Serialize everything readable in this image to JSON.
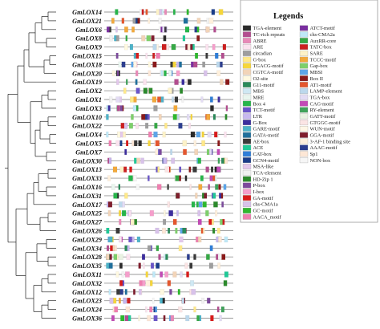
{
  "genes": [
    "GmLOX14",
    "GmLOX21",
    "GmLOX6",
    "GmLOX8",
    "GmLOX9",
    "GmLOX15",
    "GmLOX18",
    "GmLOX20",
    "GmLOX19",
    "GmLOX2",
    "GmLOX1",
    "GmLOX3",
    "GmLOX10",
    "GmLOX22",
    "GmLOX4",
    "GmLOX5",
    "GmLOX7",
    "GmLOX30",
    "GmLOX13",
    "GmLOX33",
    "GmLOX16",
    "GmLOX31",
    "GmLOX17",
    "GmLOX25",
    "GmLOX27",
    "GmLOX26",
    "GmLOX29",
    "GmLOX34",
    "GmLOX28",
    "GmLOX35",
    "GmLOX11",
    "GmLOX32",
    "GmLOX12",
    "GmLOX23",
    "GmLOX24",
    "GmLOX36"
  ],
  "legend": {
    "title": "Legends",
    "items": [
      {
        "label": "TGA-element",
        "color": "#2a2a2a"
      },
      {
        "label": "TC-rich repeats",
        "color": "#b34d8f"
      },
      {
        "label": "ABRE",
        "color": "#e889b8"
      },
      {
        "label": "ARE",
        "color": "#fbe3ef"
      },
      {
        "label": "circadian",
        "color": "#9e9e9e"
      },
      {
        "label": "G-box",
        "color": "#ffe98a"
      },
      {
        "label": "TGACG-motif",
        "color": "#f6d63a"
      },
      {
        "label": "CGTCA-motif",
        "color": "#f2d4b8"
      },
      {
        "label": "O2-site",
        "color": "#fff9e0"
      },
      {
        "label": "G11-motif",
        "color": "#2b8a5a"
      },
      {
        "label": "MBS",
        "color": "#cfe8f3"
      },
      {
        "label": "MRE",
        "color": "#e9f6ef"
      },
      {
        "label": "Box 4",
        "color": "#27b54a"
      },
      {
        "label": "TCT-motif",
        "color": "#6a55c9"
      },
      {
        "label": "LTR",
        "color": "#c7b8ef"
      },
      {
        "label": "G-Box",
        "color": "#3d2e9e"
      },
      {
        "label": "GARE-motif",
        "color": "#4db3c9"
      },
      {
        "label": "GATA-motif",
        "color": "#1f6f9c"
      },
      {
        "label": "AE-box",
        "color": "#3a3a3a"
      },
      {
        "label": "ACE",
        "color": "#20c997"
      },
      {
        "label": "CAT-box",
        "color": "#2f7ed8"
      },
      {
        "label": "GCN4-motif",
        "color": "#1a3d8a"
      },
      {
        "label": "MSA-like",
        "color": "#e3c8ec"
      },
      {
        "label": "TCA-element",
        "color": "#f1f1f1"
      },
      {
        "label": "HD-Zip 1",
        "color": "#2c8a2c"
      },
      {
        "label": "P-box",
        "color": "#7c4a9c"
      },
      {
        "label": "I-box",
        "color": "#f59ecb"
      },
      {
        "label": "GA-motif",
        "color": "#d91a1a"
      },
      {
        "label": "chs-CMA1a",
        "color": "#d8c2ea"
      },
      {
        "label": "GC-motif",
        "color": "#2eb82e"
      },
      {
        "label": "AACA_motif",
        "color": "#ef7fb0"
      },
      {
        "label": "ATCT-motif",
        "color": "#7a2ea0"
      },
      {
        "label": "chs-CMA2a",
        "color": "#bfe8f7"
      },
      {
        "label": "AuxRR-core",
        "color": "#35a845"
      },
      {
        "label": "TATC-box",
        "color": "#cc1f1f"
      },
      {
        "label": "SARE",
        "color": "#fdf2c8"
      },
      {
        "label": "TCCC-motif",
        "color": "#f2a93b"
      },
      {
        "label": "Gap-box",
        "color": "#7dcf6a"
      },
      {
        "label": "MBSI",
        "color": "#5da5e8"
      },
      {
        "label": "Box II",
        "color": "#8a1a1a"
      },
      {
        "label": "AT1-motif",
        "color": "#e4572e"
      },
      {
        "label": "LAMP-element",
        "color": "#bcd8ec"
      },
      {
        "label": "TGA-box",
        "color": "#e3dcf4"
      },
      {
        "label": "CAG-motif",
        "color": "#c24bb6"
      },
      {
        "label": "RY-element",
        "color": "#3fa35a"
      },
      {
        "label": "GATT-motif",
        "color": "#e9f2e2"
      },
      {
        "label": "GTGGC-motif",
        "color": "#fbe4e4"
      },
      {
        "label": "WUN-motif",
        "color": "#fff6e6"
      },
      {
        "label": "GGA-motif",
        "color": "#7f1d2d"
      },
      {
        "label": "3-AF-1 binding site",
        "color": "#fff0dc"
      },
      {
        "label": "AAAC-motif",
        "color": "#2c3e8f"
      },
      {
        "label": "Sp1",
        "color": "#fde7d6"
      },
      {
        "label": "NON-box",
        "color": "#f6f6f6"
      }
    ]
  }
}
